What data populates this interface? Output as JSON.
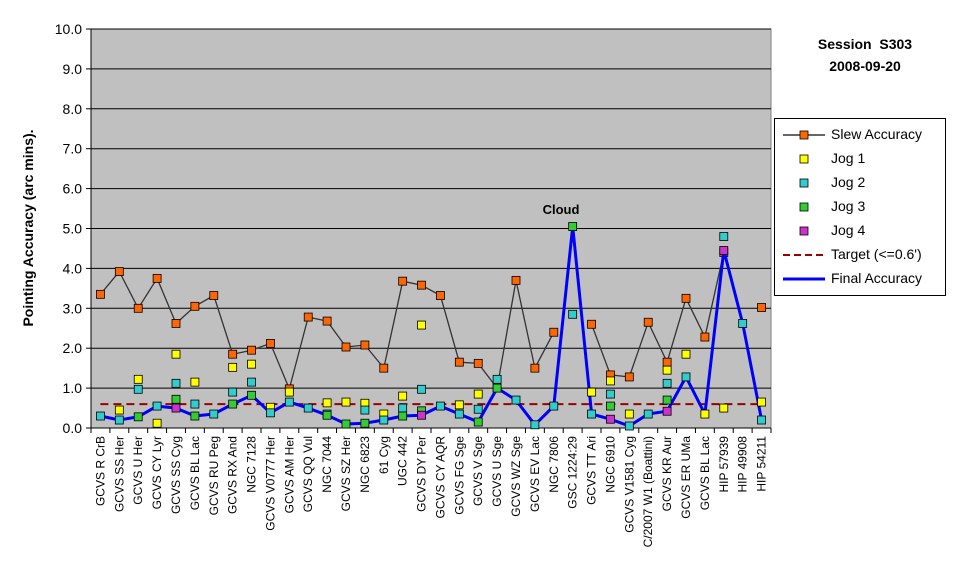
{
  "session": {
    "line1": "Session  S303",
    "line2": "2008-09-20"
  },
  "annotation": {
    "text": "Cloud",
    "target_category": "GSC 1224:29"
  },
  "legend": {
    "slew": "Slew Accuracy",
    "jog1": "Jog 1",
    "jog2": "Jog 2",
    "jog3": "Jog 3",
    "jog4": "Jog 4",
    "target": "Target (<=0.6')",
    "final": "Final Accuracy"
  },
  "colors": {
    "plot_bg": "#c0c0c0",
    "slew_line": "#333333",
    "slew_marker": "#ff6600",
    "jog1": "#ffff00",
    "jog2": "#33cccc",
    "jog3": "#33cc33",
    "jog4": "#cc33cc",
    "target": "#990000",
    "final": "#0000ff"
  },
  "chart_data": {
    "type": "line",
    "title": "",
    "xlabel": "",
    "ylabel": "Pointing Accuracy (arc mins).",
    "ylim": [
      0,
      10
    ],
    "yticks": [
      "0.0",
      "1.0",
      "2.0",
      "3.0",
      "4.0",
      "5.0",
      "6.0",
      "7.0",
      "8.0",
      "9.0",
      "10.0"
    ],
    "grid": true,
    "legend_position": "right",
    "categories": [
      "GCVS R CrB",
      "GCVS SS Her",
      "GCVS U Her",
      "GCVS CY Lyr",
      "GCVS SS Cyg",
      "GCVS BL Lac",
      "GCVS RU Peg",
      "GCVS RX And",
      "NGC 7128",
      "GCVS V0777 Her",
      "GCVS AM Her",
      "GCVS QQ Vul",
      "NGC 7044",
      "GCVS SZ Her",
      "NGC 6823",
      "61 Cyg",
      "UGC 442",
      "GCVS DY Per",
      "GCVS CY AQR",
      "GCVS FG Sge",
      "GCVS V Sge",
      "GCVS U Sge",
      "GCVS WZ Sge",
      "GCVS EV Lac",
      "NGC 7806",
      "GSC 1224:29",
      "GCVS TT Ari",
      "NGC 6910",
      "GCVS V1581 Cyg",
      "C/2007 W1 (Boattini)",
      "GCVS KR Aur",
      "GCVS ER UMa",
      "GCVS BL Lac",
      "HIP 57939",
      "HIP 49908",
      "HIP 54211"
    ],
    "series": [
      {
        "name": "Slew Accuracy",
        "values": [
          3.35,
          3.92,
          3.0,
          3.75,
          2.62,
          3.05,
          3.32,
          1.85,
          1.95,
          2.12,
          0.98,
          2.78,
          2.68,
          2.03,
          2.08,
          1.5,
          3.68,
          3.58,
          3.32,
          1.65,
          1.62,
          1.0,
          3.7,
          1.5,
          2.4,
          null,
          2.6,
          1.33,
          1.28,
          2.65,
          1.65,
          3.25,
          2.28,
          4.4,
          null,
          3.02
        ]
      },
      {
        "name": "Jog 1",
        "values": [
          null,
          0.45,
          1.22,
          0.12,
          1.85,
          1.15,
          null,
          1.52,
          1.6,
          0.52,
          0.9,
          null,
          0.63,
          0.65,
          0.62,
          0.35,
          0.8,
          2.58,
          null,
          0.58,
          0.85,
          null,
          null,
          null,
          null,
          null,
          0.9,
          1.18,
          0.35,
          null,
          1.45,
          1.85,
          0.35,
          0.5,
          null,
          0.65
        ]
      },
      {
        "name": "Jog 2",
        "values": [
          0.3,
          0.2,
          0.97,
          0.55,
          1.12,
          0.6,
          0.35,
          0.9,
          1.15,
          0.38,
          0.65,
          0.5,
          0.35,
          null,
          0.45,
          0.2,
          0.5,
          0.97,
          0.55,
          0.35,
          0.47,
          1.22,
          0.7,
          0.08,
          0.55,
          2.85,
          0.35,
          0.85,
          0.05,
          0.35,
          1.12,
          1.28,
          null,
          4.8,
          2.62,
          0.2
        ]
      },
      {
        "name": "Jog 3",
        "values": [
          null,
          null,
          0.28,
          null,
          0.72,
          0.3,
          null,
          0.6,
          0.82,
          null,
          null,
          null,
          0.32,
          0.1,
          0.12,
          null,
          0.3,
          0.43,
          null,
          null,
          0.15,
          1.0,
          null,
          null,
          null,
          5.05,
          null,
          0.55,
          null,
          null,
          0.7,
          null,
          null,
          null,
          null,
          null
        ]
      },
      {
        "name": "Jog 4",
        "values": [
          null,
          null,
          null,
          null,
          0.5,
          null,
          null,
          null,
          null,
          null,
          null,
          null,
          null,
          null,
          null,
          null,
          null,
          0.32,
          null,
          null,
          null,
          null,
          null,
          null,
          null,
          null,
          null,
          0.22,
          null,
          null,
          0.42,
          null,
          null,
          4.45,
          null,
          null
        ]
      },
      {
        "name": "Target (<=0.6')",
        "values": [
          0.6,
          0.6,
          0.6,
          0.6,
          0.6,
          0.6,
          0.6,
          0.6,
          0.6,
          0.6,
          0.6,
          0.6,
          0.6,
          0.6,
          0.6,
          0.6,
          0.6,
          0.6,
          0.6,
          0.6,
          0.6,
          0.6,
          0.6,
          0.6,
          0.6,
          0.6,
          0.6,
          0.6,
          0.6,
          0.6,
          0.6,
          0.6,
          0.6,
          0.6,
          0.6,
          0.6
        ]
      },
      {
        "name": "Final Accuracy",
        "values": [
          0.3,
          0.2,
          0.28,
          0.55,
          0.5,
          0.3,
          0.35,
          0.6,
          0.82,
          0.38,
          0.65,
          0.5,
          0.32,
          0.1,
          0.12,
          0.2,
          0.3,
          0.32,
          0.55,
          0.35,
          0.15,
          1.0,
          0.7,
          0.08,
          0.55,
          5.05,
          0.35,
          0.22,
          0.05,
          0.35,
          0.42,
          1.28,
          0.35,
          4.45,
          2.62,
          0.2
        ]
      }
    ]
  }
}
